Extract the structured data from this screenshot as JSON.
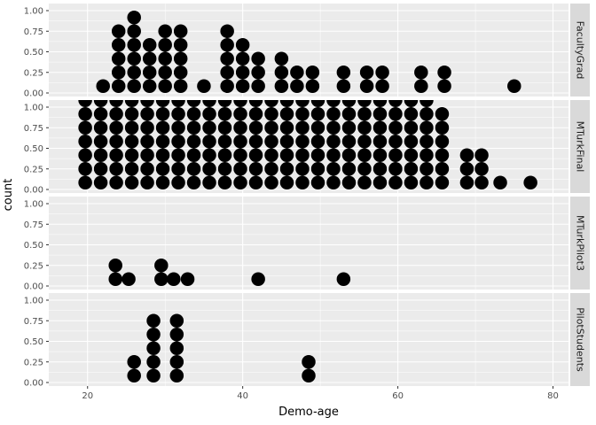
{
  "chart_data": {
    "type": "scatter",
    "subtype": "dotplot-faceted",
    "xlabel": "Demo-age",
    "ylabel": "count",
    "xlim": [
      15,
      82
    ],
    "ylim": [
      0,
      1
    ],
    "x_ticks": [
      20,
      40,
      60,
      80
    ],
    "y_ticks": [
      0,
      0.25,
      0.5,
      0.75,
      1
    ],
    "y_tick_labels": [
      "0.00",
      "0.25",
      "0.50",
      "0.75",
      "1.00"
    ],
    "grid": true,
    "facet_layout": "rows",
    "strip_position": "right",
    "binwidth": 1.5,
    "dot_color": "#000000",
    "panel_background": "#ebebeb",
    "strip_background": "#d9d9d9",
    "facets": [
      {
        "name": "FacultyGrad",
        "bins": [
          [
            22,
            1
          ],
          [
            24,
            5
          ],
          [
            26,
            6
          ],
          [
            28,
            4
          ],
          [
            30,
            5
          ],
          [
            32,
            5
          ],
          [
            35,
            1
          ],
          [
            38,
            5
          ],
          [
            40,
            4
          ],
          [
            42,
            3
          ],
          [
            45,
            3
          ],
          [
            47,
            2
          ],
          [
            49,
            2
          ],
          [
            53,
            2
          ],
          [
            56,
            2
          ],
          [
            58,
            2
          ],
          [
            63,
            2
          ],
          [
            66,
            2
          ],
          [
            75,
            1
          ]
        ]
      },
      {
        "name": "MTurkFinal",
        "bins": [
          [
            19.7,
            7
          ],
          [
            21.7,
            7
          ],
          [
            23.7,
            7
          ],
          [
            25.7,
            7
          ],
          [
            27.7,
            7
          ],
          [
            29.7,
            7
          ],
          [
            31.7,
            7
          ],
          [
            33.7,
            7
          ],
          [
            35.7,
            7
          ],
          [
            37.7,
            7
          ],
          [
            39.7,
            7
          ],
          [
            41.7,
            7
          ],
          [
            43.7,
            7
          ],
          [
            45.7,
            7
          ],
          [
            47.7,
            7
          ],
          [
            49.7,
            7
          ],
          [
            51.7,
            7
          ],
          [
            53.7,
            7
          ],
          [
            55.7,
            7
          ],
          [
            57.7,
            7
          ],
          [
            59.7,
            7
          ],
          [
            61.7,
            7
          ],
          [
            63.7,
            7
          ],
          [
            65.7,
            6
          ],
          [
            68.9,
            3
          ],
          [
            70.8,
            3
          ],
          [
            73.2,
            1
          ],
          [
            77.1,
            1
          ]
        ]
      },
      {
        "name": "MTurkPilot3",
        "bins": [
          [
            23.6,
            2
          ],
          [
            25.3,
            1
          ],
          [
            29.5,
            2
          ],
          [
            31.1,
            1
          ],
          [
            32.9,
            1
          ],
          [
            42,
            1
          ],
          [
            53,
            1
          ]
        ]
      },
      {
        "name": "PilotStudents",
        "bins": [
          [
            26,
            2
          ],
          [
            28.5,
            5
          ],
          [
            31.5,
            5
          ],
          [
            48.5,
            2
          ]
        ]
      }
    ]
  }
}
